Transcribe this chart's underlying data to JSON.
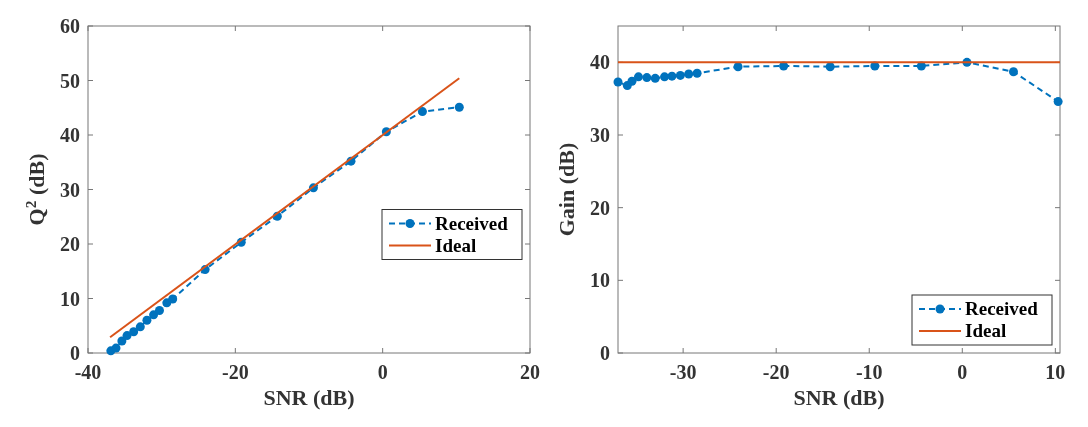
{
  "chart_data": [
    {
      "type": "line",
      "xlabel": "SNR (dB)",
      "ylabel": "Q$^{2}$ (dB)",
      "xlim": [
        -40,
        20
      ],
      "xticks": [
        -40,
        -20,
        0,
        20
      ],
      "ylim": [
        0,
        60
      ],
      "yticks": [
        0,
        10,
        20,
        30,
        40,
        50,
        60
      ],
      "grid": false,
      "legend": "right",
      "series": [
        {
          "name": "Received",
          "color": "#0072bd",
          "line_style": "dashed",
          "marker": "circle",
          "x": [
            -36.9,
            -36.2,
            -35.4,
            -34.7,
            -33.8,
            -32.9,
            -32,
            -31.1,
            -30.3,
            -29.3,
            -28.5,
            -24.1,
            -19.2,
            -14.3,
            -9.4,
            -4.3,
            0.5,
            5.4,
            10.4
          ],
          "values": [
            0.4,
            0.9,
            2.2,
            3.2,
            3.9,
            4.8,
            6,
            7,
            7.8,
            9.2,
            9.9,
            15.3,
            20.3,
            25.1,
            30.3,
            35.2,
            40.6,
            44.3,
            45.1
          ]
        },
        {
          "name": "Ideal",
          "color": "#d95319",
          "line_style": "solid",
          "marker": "none",
          "x": [
            -37,
            10.4
          ],
          "values": [
            2.9,
            50.4
          ]
        }
      ]
    },
    {
      "type": "line",
      "xlabel": "SNR (dB)",
      "ylabel": "Gain (dB)",
      "xlim": [
        -37,
        10.5
      ],
      "xticks": [
        -30,
        -20,
        -10,
        0,
        10
      ],
      "ylim": [
        0,
        45
      ],
      "yticks": [
        0,
        10,
        20,
        30,
        40
      ],
      "grid": false,
      "legend": "bottom right",
      "series": [
        {
          "name": "Received",
          "color": "#0072bd",
          "line_style": "dashed",
          "marker": "circle",
          "x": [
            -37,
            -36,
            -35.5,
            -34.8,
            -33.9,
            -33,
            -32,
            -31.2,
            -30.3,
            -29.4,
            -28.5,
            -24.1,
            -19.2,
            -14.2,
            -9.4,
            -4.4,
            0.5,
            5.5,
            10.3
          ],
          "values": [
            37.3,
            36.8,
            37.4,
            38,
            37.9,
            37.8,
            38,
            38.1,
            38.2,
            38.4,
            38.5,
            39.4,
            39.5,
            39.4,
            39.5,
            39.5,
            40,
            38.7,
            34.6
          ]
        },
        {
          "name": "Ideal",
          "color": "#d95319",
          "line_style": "solid",
          "marker": "none",
          "x": [
            -37,
            10.5
          ],
          "values": [
            40,
            40
          ]
        }
      ]
    }
  ]
}
